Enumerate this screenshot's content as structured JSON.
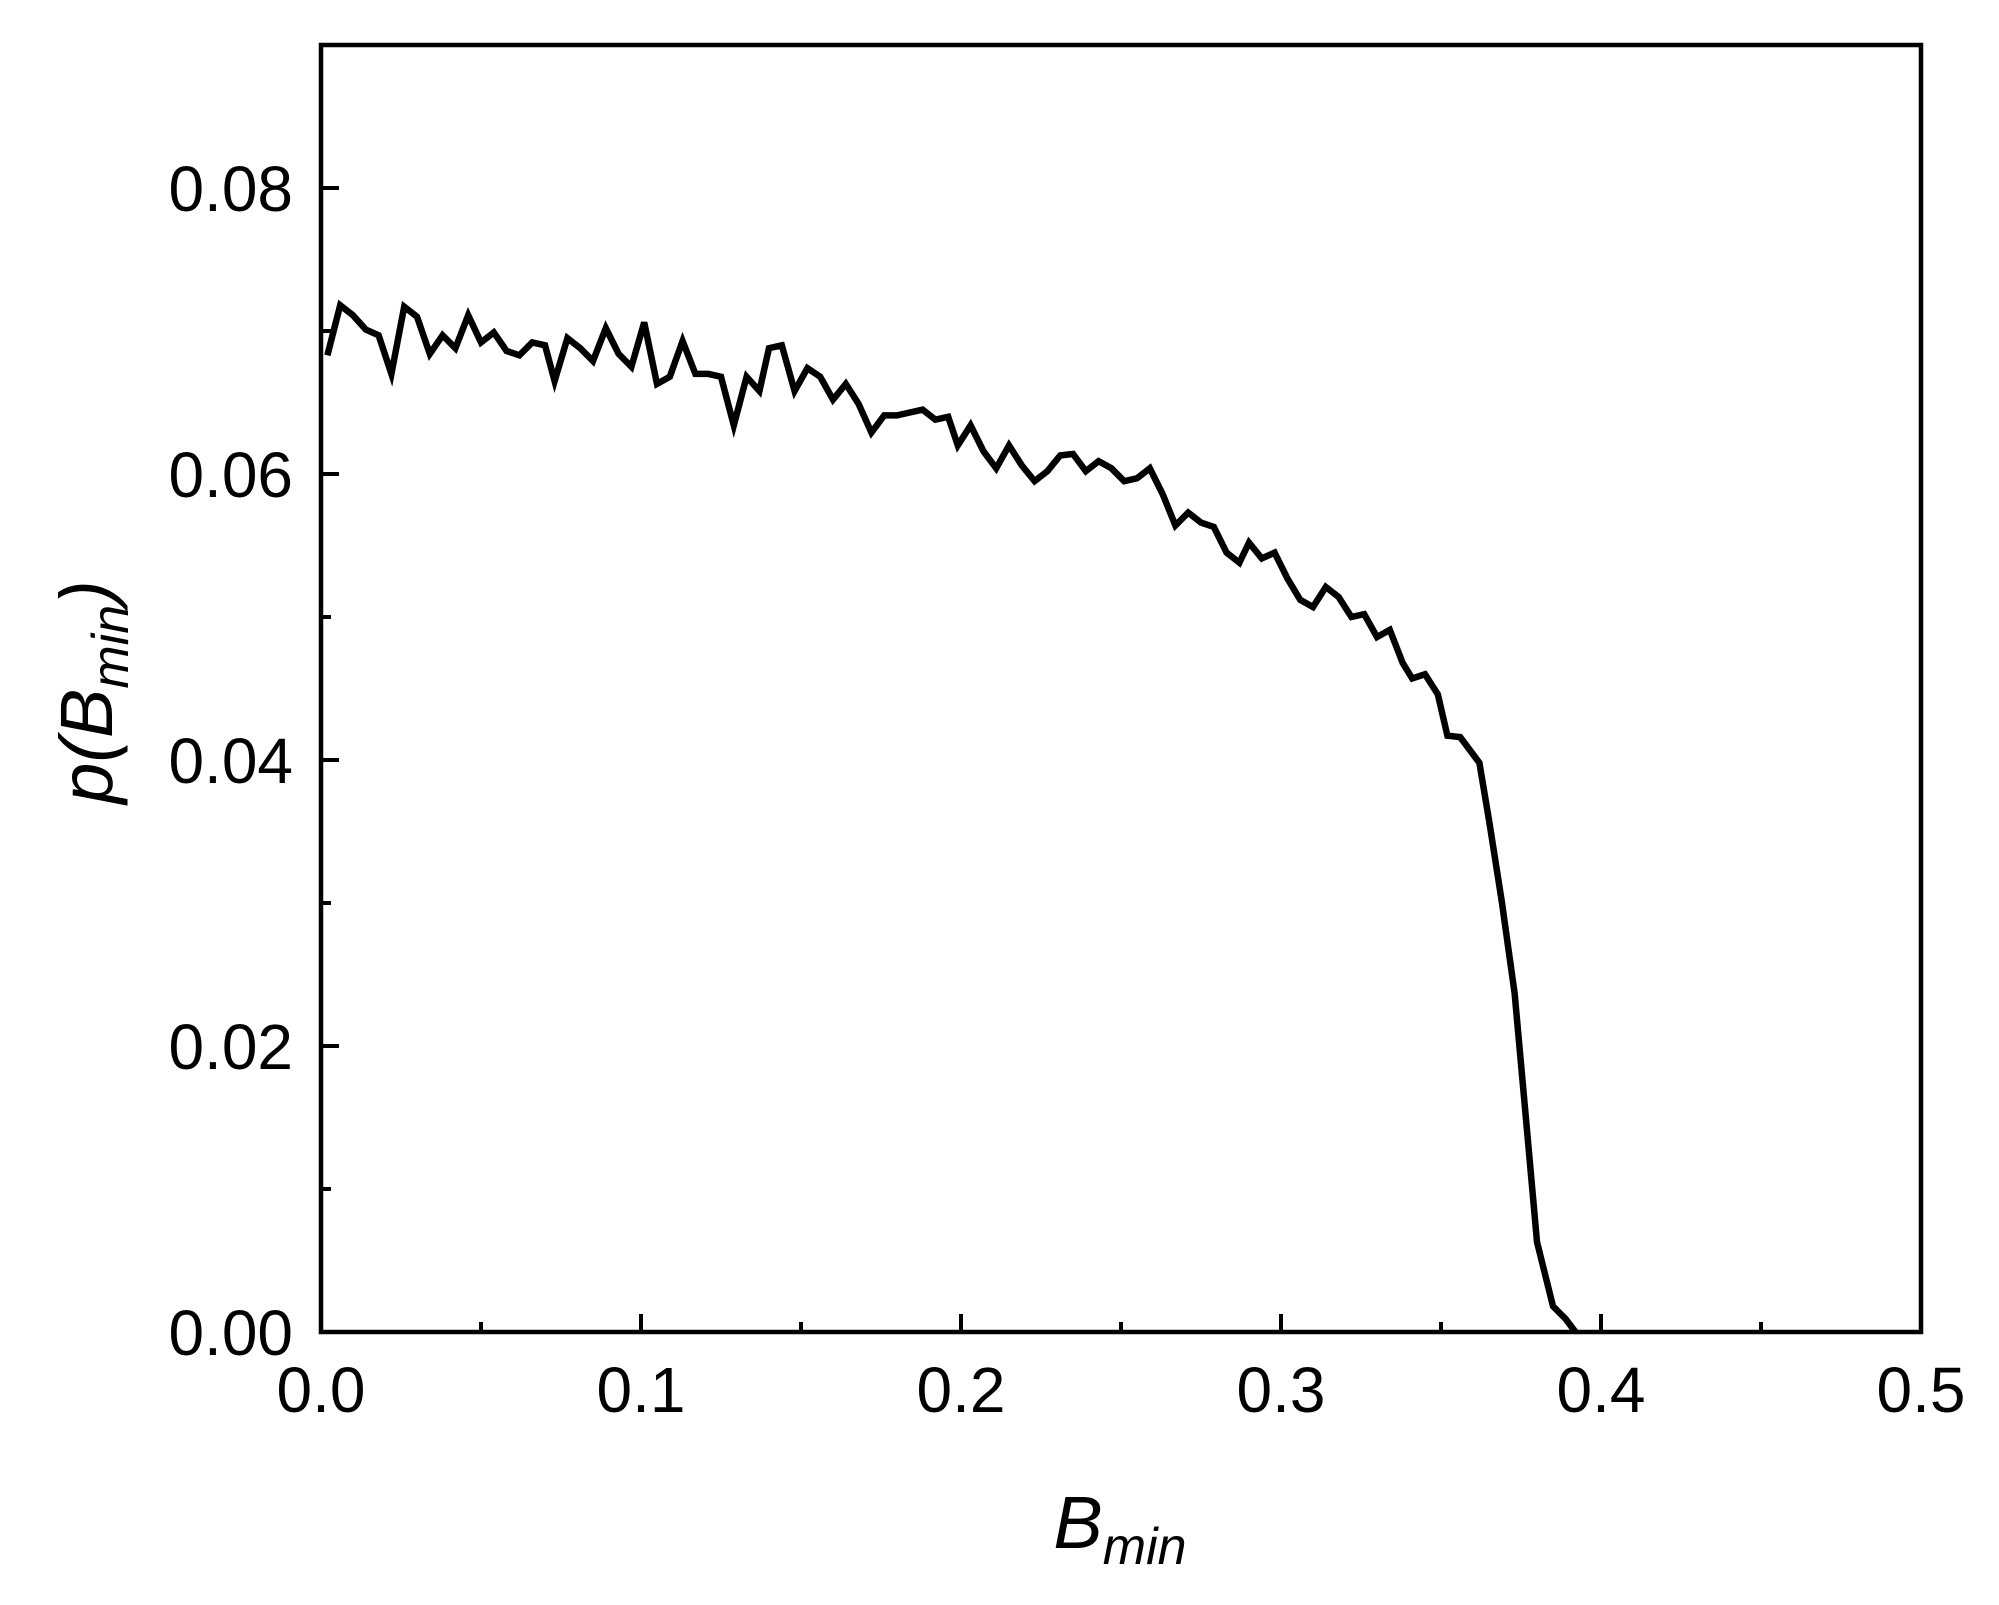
{
  "chart_data": {
    "type": "line",
    "xlabel": "B",
    "xlabel_sub": "min",
    "ylabel": "p(B",
    "ylabel_sub": "min",
    "ylabel_end": ")",
    "xlim": [
      0,
      0.5
    ],
    "ylim": [
      0,
      0.09
    ],
    "xticks": [
      {
        "value": 0,
        "label": "0.0"
      },
      0.1,
      0.2,
      0.3,
      0.4,
      0.5
    ],
    "xminorticks": [
      0.05,
      0.15,
      0.25,
      0.35,
      0.45
    ],
    "yticks": [
      {
        "value": 0,
        "label": "0.00"
      },
      0.02,
      0.04,
      0.06,
      0.08
    ],
    "yminorticks": [
      0.01,
      0.03,
      0.05,
      0.07
    ],
    "series": [
      {
        "color": "#000000",
        "x": [
          0.002,
          0.006,
          0.01,
          0.014,
          0.018,
          0.022,
          0.026,
          0.03,
          0.034,
          0.038,
          0.042,
          0.046,
          0.05,
          0.054,
          0.058,
          0.062,
          0.066,
          0.07,
          0.073,
          0.077,
          0.081,
          0.085,
          0.089,
          0.093,
          0.097,
          0.101,
          0.105,
          0.109,
          0.113,
          0.117,
          0.121,
          0.125,
          0.129,
          0.133,
          0.137,
          0.14,
          0.144,
          0.148,
          0.152,
          0.156,
          0.16,
          0.164,
          0.168,
          0.172,
          0.176,
          0.18,
          0.184,
          0.188,
          0.192,
          0.196,
          0.199,
          0.203,
          0.207,
          0.211,
          0.215,
          0.219,
          0.223,
          0.227,
          0.231,
          0.235,
          0.239,
          0.243,
          0.247,
          0.251,
          0.255,
          0.259,
          0.263,
          0.267,
          0.271,
          0.275,
          0.279,
          0.283,
          0.287,
          0.29,
          0.294,
          0.298,
          0.302,
          0.306,
          0.31,
          0.314,
          0.318,
          0.322,
          0.326,
          0.33,
          0.334,
          0.338,
          0.341,
          0.345,
          0.349,
          0.352,
          0.356,
          0.362,
          0.365,
          0.369,
          0.373,
          0.377,
          0.38,
          0.385,
          0.389,
          0.392
        ],
        "values": [
          0.0683,
          0.0718,
          0.0711,
          0.0701,
          0.0697,
          0.067,
          0.0717,
          0.071,
          0.0684,
          0.0697,
          0.0688,
          0.0711,
          0.0692,
          0.0699,
          0.0686,
          0.0683,
          0.0692,
          0.069,
          0.0665,
          0.0695,
          0.0688,
          0.0679,
          0.0702,
          0.0684,
          0.0675,
          0.0706,
          0.0663,
          0.0668,
          0.0693,
          0.067,
          0.067,
          0.0668,
          0.0634,
          0.0668,
          0.0658,
          0.0688,
          0.069,
          0.0658,
          0.0674,
          0.0668,
          0.0652,
          0.0663,
          0.0649,
          0.0629,
          0.0641,
          0.0641,
          0.0643,
          0.0645,
          0.0638,
          0.064,
          0.062,
          0.0634,
          0.0616,
          0.0604,
          0.062,
          0.0606,
          0.0595,
          0.0602,
          0.0613,
          0.0614,
          0.0602,
          0.0609,
          0.0604,
          0.0595,
          0.0597,
          0.0604,
          0.0586,
          0.0564,
          0.0573,
          0.0566,
          0.0563,
          0.0545,
          0.0538,
          0.0552,
          0.0541,
          0.0545,
          0.0527,
          0.0512,
          0.0507,
          0.0521,
          0.0514,
          0.05,
          0.0502,
          0.0486,
          0.0491,
          0.0468,
          0.0457,
          0.046,
          0.0446,
          0.0417,
          0.0416,
          0.0398,
          0.0358,
          0.0301,
          0.0237,
          0.0138,
          0.0063,
          0.0018,
          0.0009,
          0
        ]
      }
    ]
  }
}
